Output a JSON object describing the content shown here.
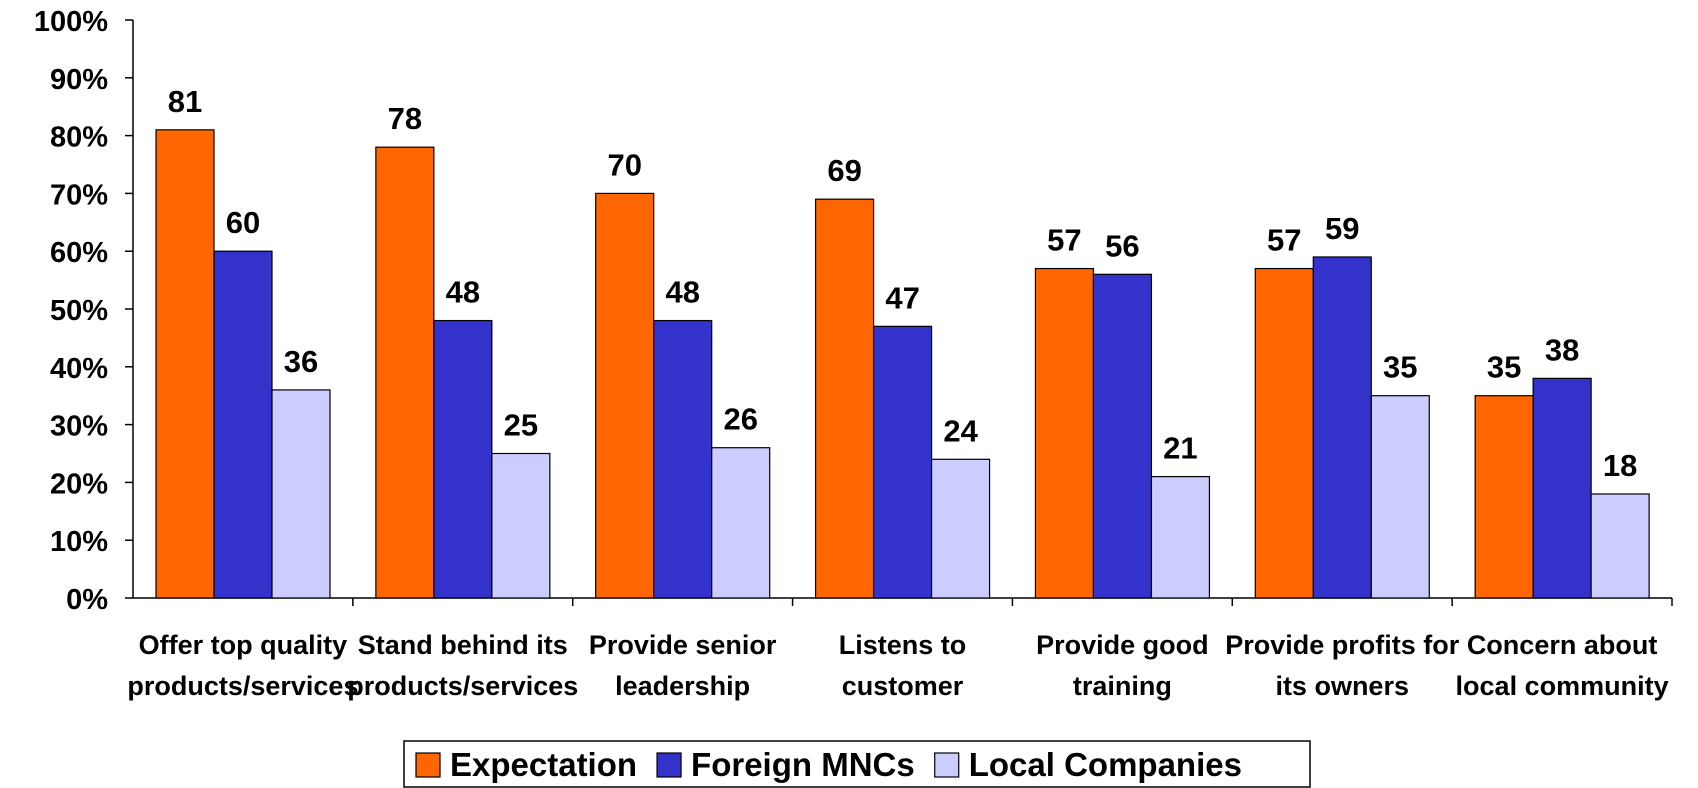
{
  "chart_data": {
    "type": "bar",
    "categories": [
      [
        "Offer top quality",
        "products/services"
      ],
      [
        "Stand behind its",
        "products/services"
      ],
      [
        "Provide senior",
        "leadership"
      ],
      [
        "Listens to",
        "customer"
      ],
      [
        "Provide good",
        "training"
      ],
      [
        "Provide profits for",
        "its owners"
      ],
      [
        "Concern about",
        "local community"
      ]
    ],
    "series": [
      {
        "name": "Expectation",
        "color": "#FF6600",
        "values": [
          81,
          78,
          70,
          69,
          57,
          57,
          35
        ]
      },
      {
        "name": "Foreign MNCs",
        "color": "#3333CC",
        "values": [
          60,
          48,
          48,
          47,
          56,
          59,
          38
        ]
      },
      {
        "name": "Local Companies",
        "color": "#CCCCFF",
        "values": [
          36,
          25,
          26,
          24,
          21,
          35,
          18
        ]
      }
    ],
    "ylim": [
      0,
      100
    ],
    "ytick_labels": [
      "0%",
      "10%",
      "20%",
      "30%",
      "40%",
      "50%",
      "60%",
      "70%",
      "80%",
      "90%",
      "100%"
    ],
    "grid": false,
    "legend_position": "bottom"
  }
}
